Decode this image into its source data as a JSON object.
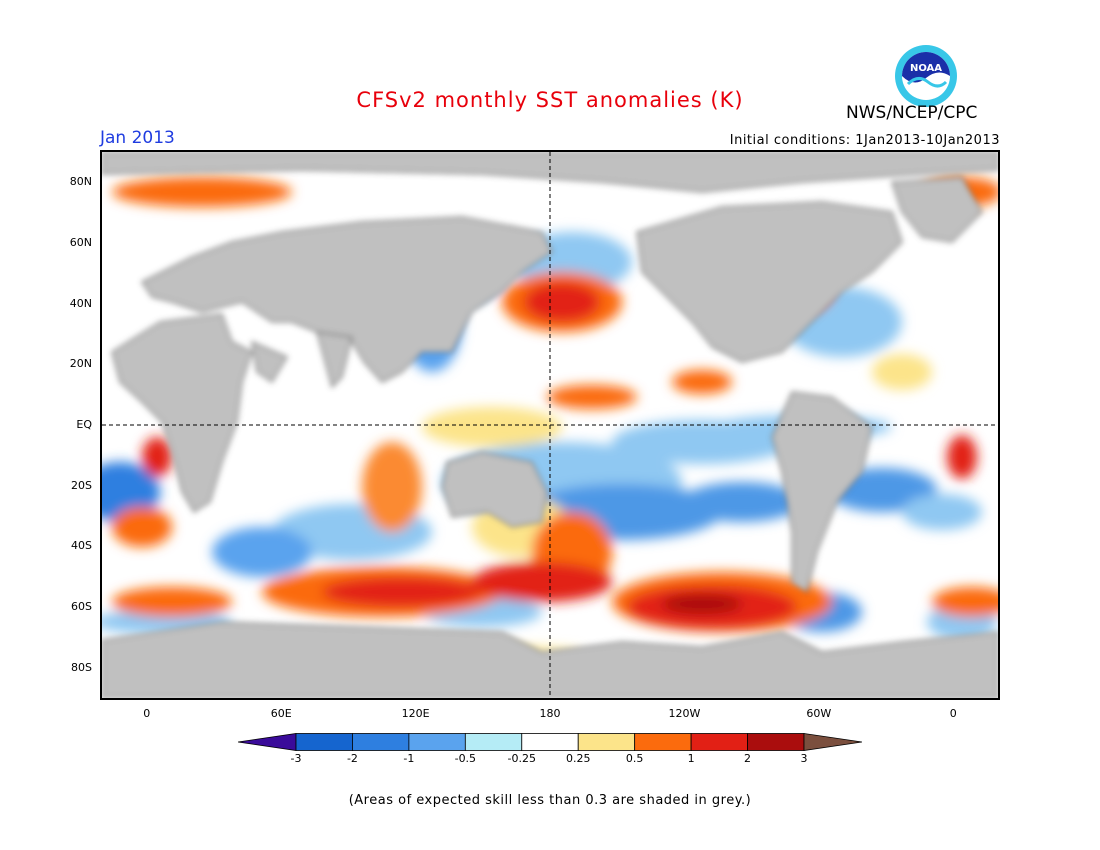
{
  "title": "CFSv2 monthly SST anomalies (K)",
  "agency": "NWS/NCEP/CPC",
  "logo_text": "NOAA",
  "period": "Jan 2013",
  "initial_conditions": "Initial conditions: 1Jan2013-10Jan2013",
  "footnote": "(Areas of expected skill less than 0.3 are shaded in grey.)",
  "map": {
    "projection": "equirectangular",
    "lon_range": [
      -20,
      380
    ],
    "lat_range": [
      -90,
      90
    ],
    "land_color": "#c0c0c0",
    "ocean_color": "#ffffff",
    "lat_ticks": [
      {
        "lat": 80,
        "label": "80N"
      },
      {
        "lat": 60,
        "label": "60N"
      },
      {
        "lat": 40,
        "label": "40N"
      },
      {
        "lat": 20,
        "label": "20N"
      },
      {
        "lat": 0,
        "label": "EQ"
      },
      {
        "lat": -20,
        "label": "20S"
      },
      {
        "lat": -40,
        "label": "40S"
      },
      {
        "lat": -60,
        "label": "60S"
      },
      {
        "lat": -80,
        "label": "80S"
      }
    ],
    "lon_ticks": [
      {
        "lon": 0,
        "label": "0"
      },
      {
        "lon": 60,
        "label": "60E"
      },
      {
        "lon": 120,
        "label": "120E"
      },
      {
        "lon": 180,
        "label": "180"
      },
      {
        "lon": 240,
        "label": "120W"
      },
      {
        "lon": 300,
        "label": "60W"
      },
      {
        "lon": 360,
        "label": "0"
      }
    ],
    "reference_lines": {
      "equator_lat": 0,
      "dateline_lon": 180
    }
  },
  "colorbar": {
    "ticks": [
      "-3",
      "-2",
      "-1",
      "-0.5",
      "-0.25",
      "0.25",
      "0.5",
      "1",
      "2",
      "3"
    ],
    "colors": [
      "#3a0b9a",
      "#1565cf",
      "#2e7fe0",
      "#5aa3ee",
      "#b5ecf6",
      "#ffffff",
      "#fce48a",
      "#fb6b0d",
      "#e22015",
      "#aa0d0d",
      "#7b4f3e"
    ]
  }
}
